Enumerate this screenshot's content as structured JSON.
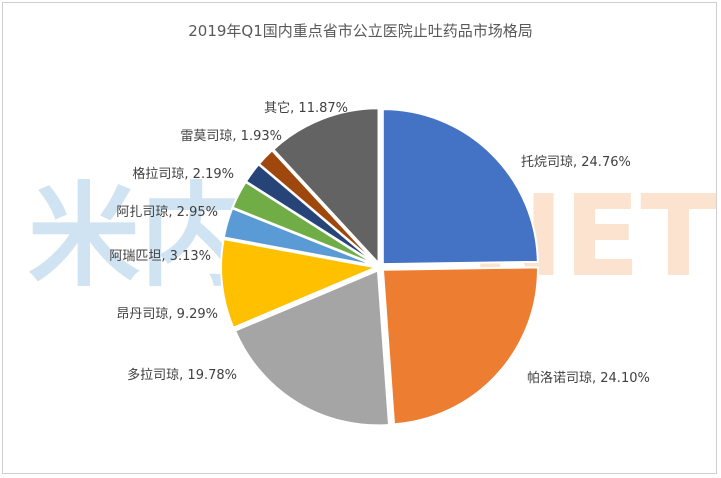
{
  "chart_data": {
    "type": "pie",
    "title": "2019年Q1国内重点省市公立医院止吐药品市场格局",
    "slices": [
      {
        "name": "托烷司琼",
        "value": 24.76,
        "label": "托烷司琼, 24.76%",
        "color": "#4472C4"
      },
      {
        "name": "帕洛诺司琼",
        "value": 24.1,
        "label": "帕洛诺司琼, 24.10%",
        "color": "#ED7D31"
      },
      {
        "name": "多拉司琼",
        "value": 19.78,
        "label": "多拉司琼, 19.78%",
        "color": "#A5A5A5"
      },
      {
        "name": "昂丹司琼",
        "value": 9.29,
        "label": "昂丹司琼, 9.29%",
        "color": "#FFC000"
      },
      {
        "name": "阿瑞匹坦",
        "value": 3.13,
        "label": "阿瑞匹坦, 3.13%",
        "color": "#5B9BD5"
      },
      {
        "name": "阿扎司琼",
        "value": 2.95,
        "label": "阿扎司琼, 2.95%",
        "color": "#70AD47"
      },
      {
        "name": "格拉司琼",
        "value": 2.19,
        "label": "格拉司琼, 2.19%",
        "color": "#264478"
      },
      {
        "name": "雷莫司琼",
        "value": 1.93,
        "label": "雷莫司琼, 1.93%",
        "color": "#9E480E"
      },
      {
        "name": "其它",
        "value": 11.87,
        "label": "其它, 11.87%",
        "color": "#636363"
      }
    ]
  },
  "watermark": {
    "left_text": "米内",
    "right_text": "NET",
    "left_color": "#cfe3f2",
    "right_color": "#fbe3d0"
  }
}
